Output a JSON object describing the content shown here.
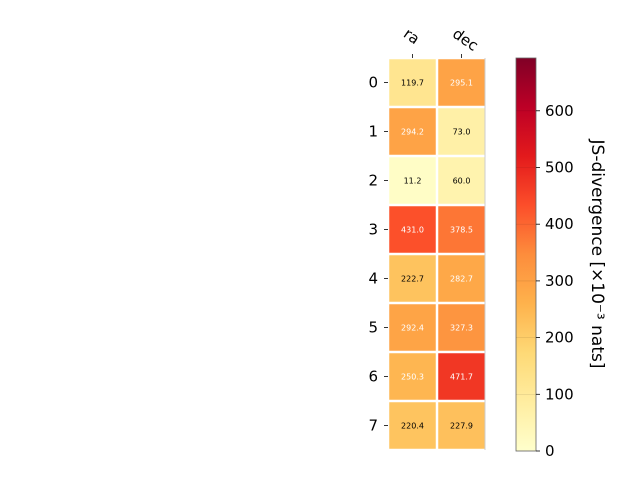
{
  "chart_data": {
    "type": "heatmap",
    "columns": [
      "ra",
      "dec"
    ],
    "rows": [
      "0",
      "1",
      "2",
      "3",
      "4",
      "5",
      "6",
      "7"
    ],
    "values": [
      [
        119.7,
        295.1
      ],
      [
        294.2,
        73.0
      ],
      [
        11.2,
        60.0
      ],
      [
        431.0,
        378.5
      ],
      [
        222.7,
        282.7
      ],
      [
        292.4,
        327.3
      ],
      [
        250.3,
        471.7
      ],
      [
        220.4,
        227.9
      ]
    ],
    "cell_labels": [
      [
        "119.7",
        "295.1"
      ],
      [
        "294.2",
        "73.0"
      ],
      [
        "11.2",
        "60.0"
      ],
      [
        "431.0",
        "378.5"
      ],
      [
        "222.7",
        "282.7"
      ],
      [
        "292.4",
        "327.3"
      ],
      [
        "250.3",
        "471.7"
      ],
      [
        "220.4",
        "227.9"
      ]
    ],
    "colormap": "YlOrRd",
    "colorbar": {
      "label": "JS-divergence [×10⁻³ nats]",
      "range": [
        0,
        693.1
      ],
      "ticks": [
        "0",
        "100",
        "200",
        "300",
        "400",
        "500",
        "600"
      ],
      "tick_values": [
        0,
        100,
        200,
        300,
        400,
        500,
        600
      ]
    },
    "grid": false
  }
}
